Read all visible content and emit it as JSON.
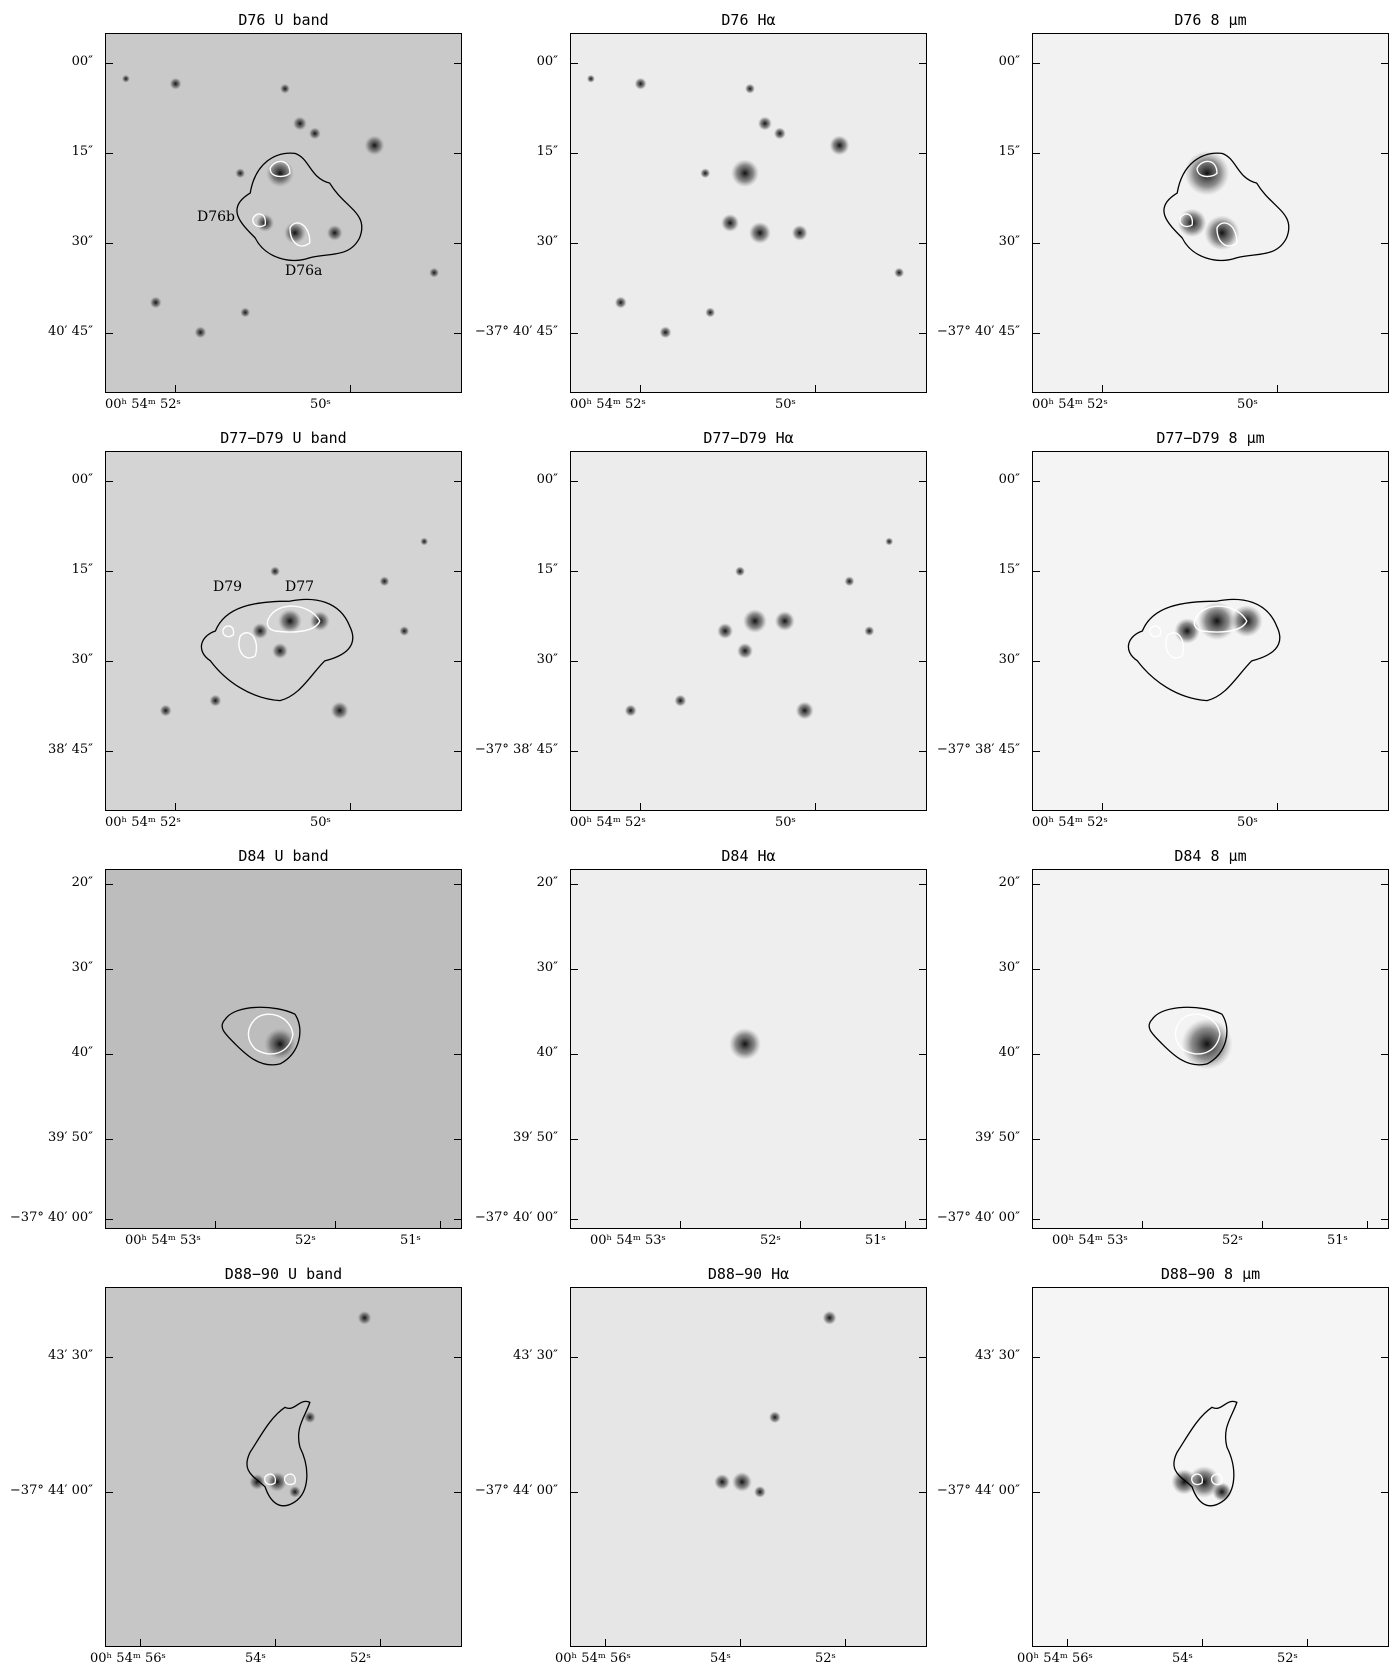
{
  "rows": [
    {
      "name": "D76",
      "yticks": [
        "00″",
        "15″",
        "30″",
        "40′ 45″"
      ],
      "ytick_full": "−37° 40′ 45″",
      "xticks": [
        "00ʰ 54ᵐ 52ˢ",
        "50ˢ"
      ],
      "panels": [
        {
          "title": "D76 U band",
          "labels": [
            "D76b",
            "D76a"
          ]
        },
        {
          "title": "D76 Hα",
          "labels": []
        },
        {
          "title": "D76 8 μm",
          "labels": []
        }
      ]
    },
    {
      "name": "D77-D79",
      "yticks": [
        "00″",
        "15″",
        "30″",
        "38′ 45″"
      ],
      "ytick_full": "−37° 38′ 45″",
      "xticks": [
        "00ʰ 54ᵐ 52ˢ",
        "50ˢ"
      ],
      "panels": [
        {
          "title": "D77−D79 U band",
          "labels": [
            "D79",
            "D77"
          ]
        },
        {
          "title": "D77−D79 Hα",
          "labels": []
        },
        {
          "title": "D77−D79 8 μm",
          "labels": []
        }
      ]
    },
    {
      "name": "D84",
      "yticks": [
        "20″",
        "30″",
        "40″",
        "39′ 50″",
        "−37° 40′ 00″"
      ],
      "xticks": [
        "00ʰ 54ᵐ 53ˢ",
        "52ˢ",
        "51ˢ"
      ],
      "panels": [
        {
          "title": "D84 U band",
          "labels": []
        },
        {
          "title": "D84 Hα",
          "labels": []
        },
        {
          "title": "D84 8 μm",
          "labels": []
        }
      ]
    },
    {
      "name": "D88-90",
      "yticks": [
        "43′ 30″",
        "−37° 44′ 00″"
      ],
      "xticks": [
        "00ʰ 54ᵐ 56ˢ",
        "54ˢ",
        "52ˢ"
      ],
      "panels": [
        {
          "title": "D88−90 U band",
          "labels": []
        },
        {
          "title": "D88−90 Hα",
          "labels": []
        },
        {
          "title": "D88−90 8 μm",
          "labels": []
        }
      ]
    }
  ]
}
